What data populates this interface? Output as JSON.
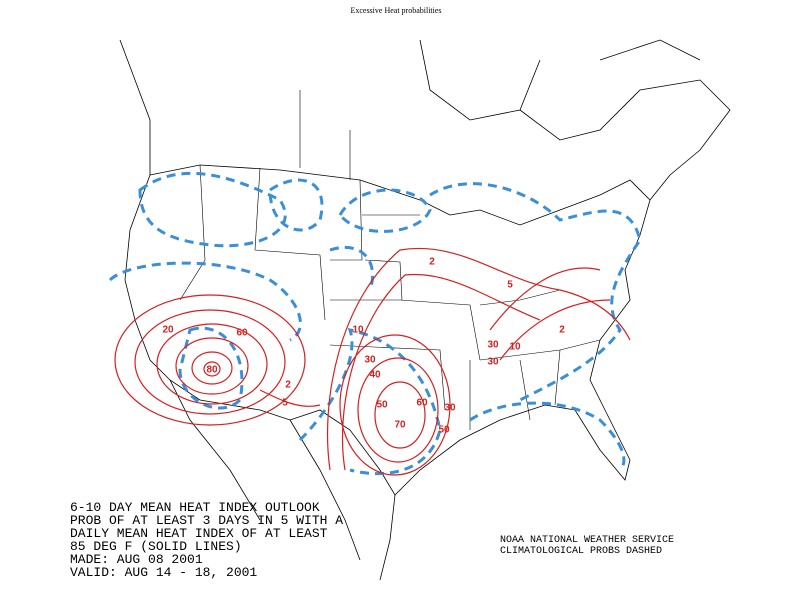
{
  "title": "Excessive Heat probabilities",
  "caption": [
    "6-10 DAY MEAN HEAT INDEX OUTLOOK",
    "PROB OF AT LEAST 3 DAYS IN 5 WITH A",
    "DAILY MEAN HEAT INDEX OF AT LEAST",
    "85 DEG F (SOLID LINES)",
    "MADE: AUG 08 2001",
    "VALID: AUG 14 - 18, 2001"
  ],
  "credit": [
    "NOAA NATIONAL WEATHER SERVICE",
    "CLIMATOLOGICAL PROBS DASHED"
  ],
  "contour_labels": [
    2,
    5,
    2,
    10,
    30,
    30,
    10,
    20,
    60,
    80,
    30,
    40,
    50,
    60,
    70,
    30,
    50,
    2,
    5
  ]
}
